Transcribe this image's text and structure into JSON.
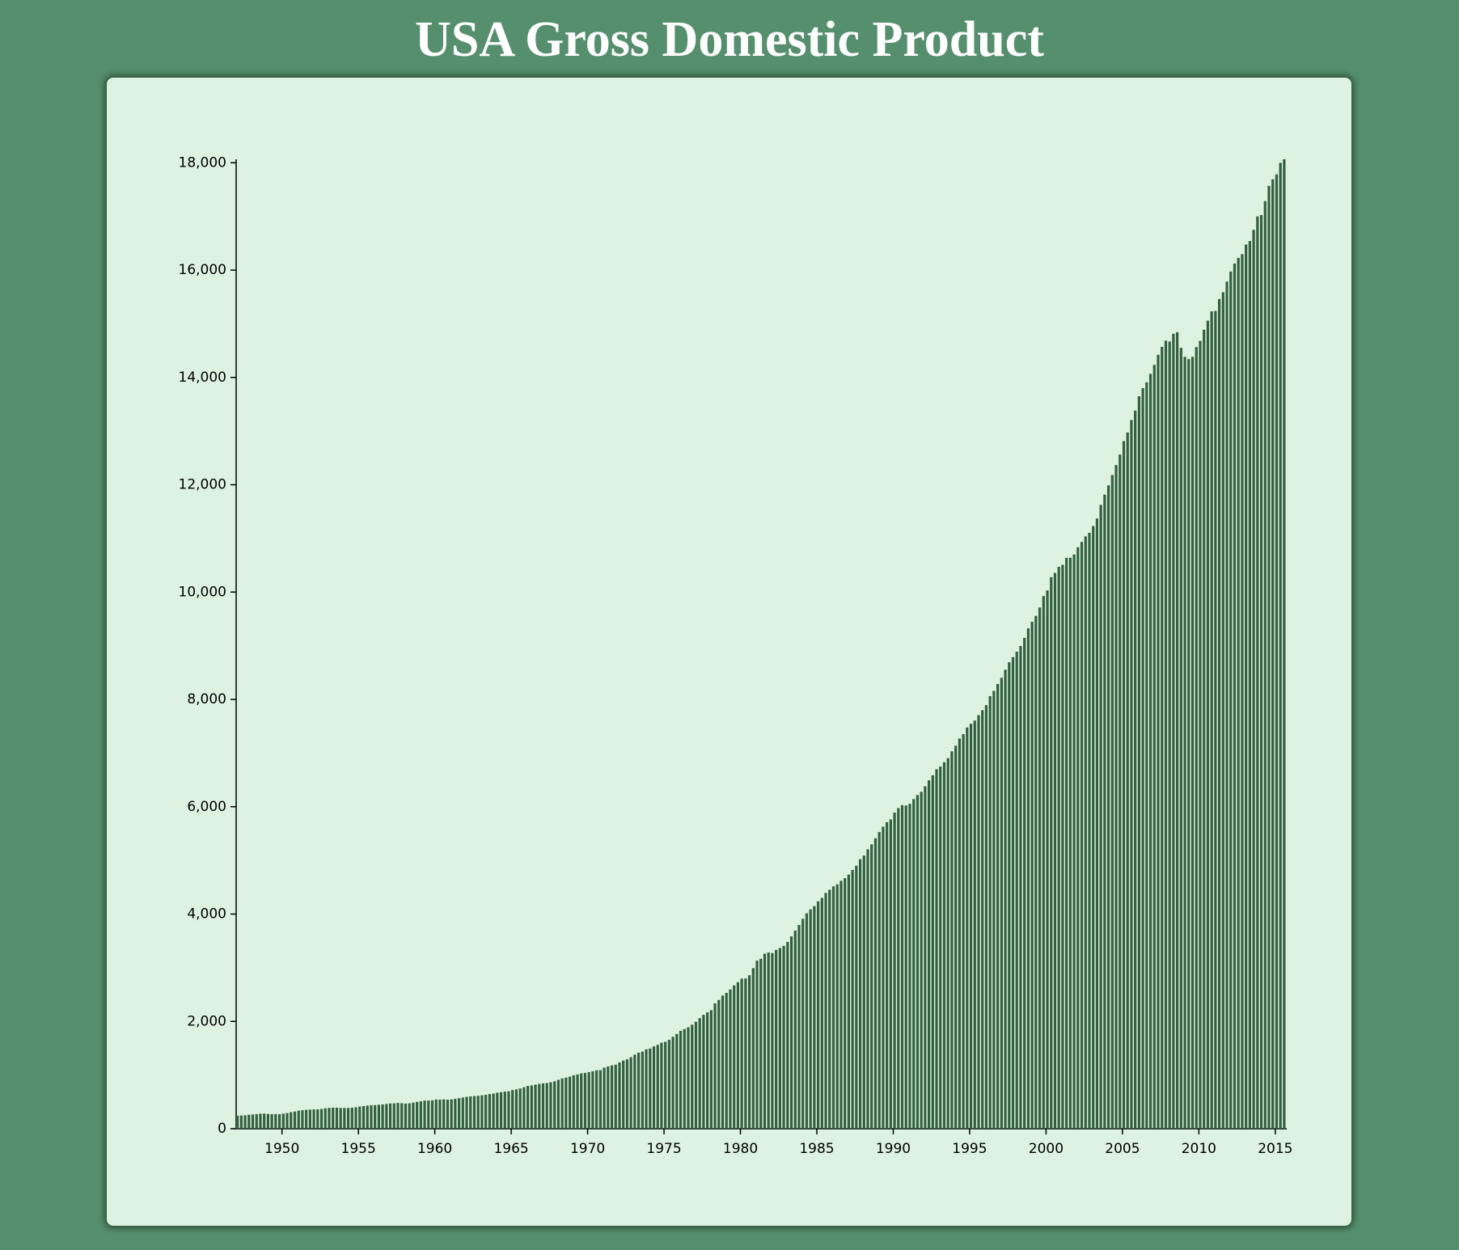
{
  "chart_data": {
    "type": "bar",
    "title": "USA Gross Domestic Product",
    "x": [
      1947,
      1947.25,
      1947.5,
      1947.75,
      1948,
      1948.25,
      1948.5,
      1948.75,
      1949,
      1949.25,
      1949.5,
      1949.75,
      1950,
      1950.25,
      1950.5,
      1950.75,
      1951,
      1951.25,
      1951.5,
      1951.75,
      1952,
      1952.25,
      1952.5,
      1952.75,
      1953,
      1953.25,
      1953.5,
      1953.75,
      1954,
      1954.25,
      1954.5,
      1954.75,
      1955,
      1955.25,
      1955.5,
      1955.75,
      1956,
      1956.25,
      1956.5,
      1956.75,
      1957,
      1957.25,
      1957.5,
      1957.75,
      1958,
      1958.25,
      1958.5,
      1958.75,
      1959,
      1959.25,
      1959.5,
      1959.75,
      1960,
      1960.25,
      1960.5,
      1960.75,
      1961,
      1961.25,
      1961.5,
      1961.75,
      1962,
      1962.25,
      1962.5,
      1962.75,
      1963,
      1963.25,
      1963.5,
      1963.75,
      1964,
      1964.25,
      1964.5,
      1964.75,
      1965,
      1965.25,
      1965.5,
      1965.75,
      1966,
      1966.25,
      1966.5,
      1966.75,
      1967,
      1967.25,
      1967.5,
      1967.75,
      1968,
      1968.25,
      1968.5,
      1968.75,
      1969,
      1969.25,
      1969.5,
      1969.75,
      1970,
      1970.25,
      1970.5,
      1970.75,
      1971,
      1971.25,
      1971.5,
      1971.75,
      1972,
      1972.25,
      1972.5,
      1972.75,
      1973,
      1973.25,
      1973.5,
      1973.75,
      1974,
      1974.25,
      1974.5,
      1974.75,
      1975,
      1975.25,
      1975.5,
      1975.75,
      1976,
      1976.25,
      1976.5,
      1976.75,
      1977,
      1977.25,
      1977.5,
      1977.75,
      1978,
      1978.25,
      1978.5,
      1978.75,
      1979,
      1979.25,
      1979.5,
      1979.75,
      1980,
      1980.25,
      1980.5,
      1980.75,
      1981,
      1981.25,
      1981.5,
      1981.75,
      1982,
      1982.25,
      1982.5,
      1982.75,
      1983,
      1983.25,
      1983.5,
      1983.75,
      1984,
      1984.25,
      1984.5,
      1984.75,
      1985,
      1985.25,
      1985.5,
      1985.75,
      1986,
      1986.25,
      1986.5,
      1986.75,
      1987,
      1987.25,
      1987.5,
      1987.75,
      1988,
      1988.25,
      1988.5,
      1988.75,
      1989,
      1989.25,
      1989.5,
      1989.75,
      1990,
      1990.25,
      1990.5,
      1990.75,
      1991,
      1991.25,
      1991.5,
      1991.75,
      1992,
      1992.25,
      1992.5,
      1992.75,
      1993,
      1993.25,
      1993.5,
      1993.75,
      1994,
      1994.25,
      1994.5,
      1994.75,
      1995,
      1995.25,
      1995.5,
      1995.75,
      1996,
      1996.25,
      1996.5,
      1996.75,
      1997,
      1997.25,
      1997.5,
      1997.75,
      1998,
      1998.25,
      1998.5,
      1998.75,
      1999,
      1999.25,
      1999.5,
      1999.75,
      2000,
      2000.25,
      2000.5,
      2000.75,
      2001,
      2001.25,
      2001.5,
      2001.75,
      2002,
      2002.25,
      2002.5,
      2002.75,
      2003,
      2003.25,
      2003.5,
      2003.75,
      2004,
      2004.25,
      2004.5,
      2004.75,
      2005,
      2005.25,
      2005.5,
      2005.75,
      2006,
      2006.25,
      2006.5,
      2006.75,
      2007,
      2007.25,
      2007.5,
      2007.75,
      2008,
      2008.25,
      2008.5,
      2008.75,
      2009,
      2009.25,
      2009.5,
      2009.75,
      2010,
      2010.25,
      2010.5,
      2010.75,
      2011,
      2011.25,
      2011.5,
      2011.75,
      2012,
      2012.25,
      2012.5,
      2012.75,
      2013,
      2013.25,
      2013.5,
      2013.75,
      2014,
      2014.25,
      2014.5,
      2014.75,
      2015,
      2015.25,
      2015.5
    ],
    "values": [
      243.1,
      246.3,
      250.1,
      260.3,
      266.2,
      272.9,
      279.5,
      280.7,
      275.4,
      271.7,
      273.3,
      271.0,
      281.2,
      290.7,
      308.5,
      320.3,
      336.4,
      344.5,
      351.8,
      356.6,
      360.2,
      361.4,
      368.1,
      381.2,
      388.5,
      392.3,
      391.7,
      386.5,
      385.9,
      386.7,
      391.6,
      400.3,
      413.8,
      422.2,
      430.9,
      437.8,
      440.5,
      446.8,
      452.0,
      461.3,
      470.6,
      472.8,
      480.3,
      475.7,
      468.4,
      472.8,
      486.7,
      500.4,
      511.1,
      524.2,
      525.2,
      529.3,
      543.3,
      542.7,
      546.0,
      541.1,
      545.9,
      557.4,
      568.2,
      581.6,
      595.2,
      602.6,
      609.6,
      613.1,
      622.7,
      631.8,
      645.0,
      654.8,
      671.1,
      680.8,
      692.8,
      698.4,
      719.2,
      732.4,
      750.2,
      773.1,
      797.3,
      807.2,
      820.8,
      834.9,
      846.0,
      851.1,
      866.6,
      883.2,
      911.1,
      936.3,
      952.3,
      970.1,
      995.4,
      1011.4,
      1032.0,
      1040.7,
      1053.5,
      1070.1,
      1088.5,
      1091.5,
      1137.8,
      1159.4,
      1180.3,
      1193.6,
      1233.8,
      1270.1,
      1293.8,
      1332.0,
      1380.7,
      1417.6,
      1436.8,
      1479.1,
      1494.7,
      1534.2,
      1563.4,
      1603.0,
      1619.6,
      1656.4,
      1713.8,
      1765.9,
      1824.5,
      1856.9,
      1890.5,
      1938.4,
      1992.5,
      2060.2,
      2122.4,
      2168.7,
      2208.7,
      2336.6,
      2398.9,
      2482.2,
      2531.6,
      2595.9,
      2670.4,
      2730.7,
      2796.5,
      2799.9,
      2860.0,
      2993.5,
      3131.8,
      3167.3,
      3261.2,
      3283.5,
      3273.8,
      3331.3,
      3367.1,
      3407.8,
      3480.3,
      3583.8,
      3692.3,
      3796.1,
      3912.8,
      4015.0,
      4087.4,
      4147.6,
      4237.0,
      4302.3,
      4394.6,
      4453.1,
      4516.3,
      4555.2,
      4619.6,
      4669.4,
      4736.2,
      4821.5,
      4900.5,
      5022.7,
      5090.6,
      5207.7,
      5299.5,
      5412.7,
      5527.4,
      5628.4,
      5711.6,
      5763.4,
      5890.8,
      5974.7,
      6029.5,
      6023.3,
      6054.9,
      6143.6,
      6218.4,
      6279.3,
      6380.8,
      6492.3,
      6586.5,
      6697.6,
      6748.2,
      6829.6,
      6904.2,
      7032.8,
      7136.3,
      7269.8,
      7352.3,
      7476.7,
      7545.3,
      7604.9,
      7706.5,
      7799.5,
      7893.1,
      8061.5,
      8159.0,
      8287.1,
      8402.1,
      8551.9,
      8691.8,
      8788.3,
      8889.7,
      8994.7,
      9146.5,
      9325.7,
      9447.1,
      9557.0,
      9712.3,
      9926.1,
      10031.0,
      10278.3,
      10357.4,
      10472.3,
      10508.1,
      10638.4,
      10639.5,
      10701.3,
      10834.4,
      10934.8,
      11037.1,
      11103.8,
      11230.1,
      11370.7,
      11625.1,
      11816.8,
      11988.4,
      12181.4,
      12367.7,
      12562.2,
      12813.7,
      12974.1,
      13205.4,
      13381.6,
      13648.9,
      13799.8,
      13908.5,
      14066.4,
      14233.2,
      14422.3,
      14569.7,
      14685.3,
      14668.4,
      14813.0,
      14843.0,
      14549.9,
      14383.9,
      14340.4,
      14384.1,
      14566.5,
      14681.1,
      14888.6,
      15057.7,
      15230.2,
      15238.4,
      15460.9,
      15587.1,
      15785.3,
      15973.9,
      16121.9,
      16227.9,
      16297.3,
      16475.4,
      16541.4,
      16749.3,
      16999.9,
      17025.2,
      17285.6,
      17569.4,
      17692.2,
      17783.6,
      17998.3,
      18064.7
    ],
    "color": "#33603f",
    "xlim": [
      1947,
      2015.75
    ],
    "xticks": [
      1950,
      1955,
      1960,
      1965,
      1970,
      1975,
      1980,
      1985,
      1990,
      1995,
      2000,
      2005,
      2010,
      2015
    ],
    "ylim": [
      0,
      18064.7
    ],
    "yticks": [
      0,
      {
        "value": 2000,
        "label": "2,000"
      },
      {
        "value": 4000,
        "label": "4,000"
      },
      {
        "value": 6000,
        "label": "6,000"
      },
      {
        "value": 8000,
        "label": "8,000"
      },
      {
        "value": 10000,
        "label": "10,000"
      },
      {
        "value": 12000,
        "label": "12,000"
      },
      {
        "value": 14000,
        "label": "14,000"
      },
      {
        "value": 16000,
        "label": "16,000"
      },
      {
        "value": 18000,
        "label": "18,000"
      }
    ]
  }
}
